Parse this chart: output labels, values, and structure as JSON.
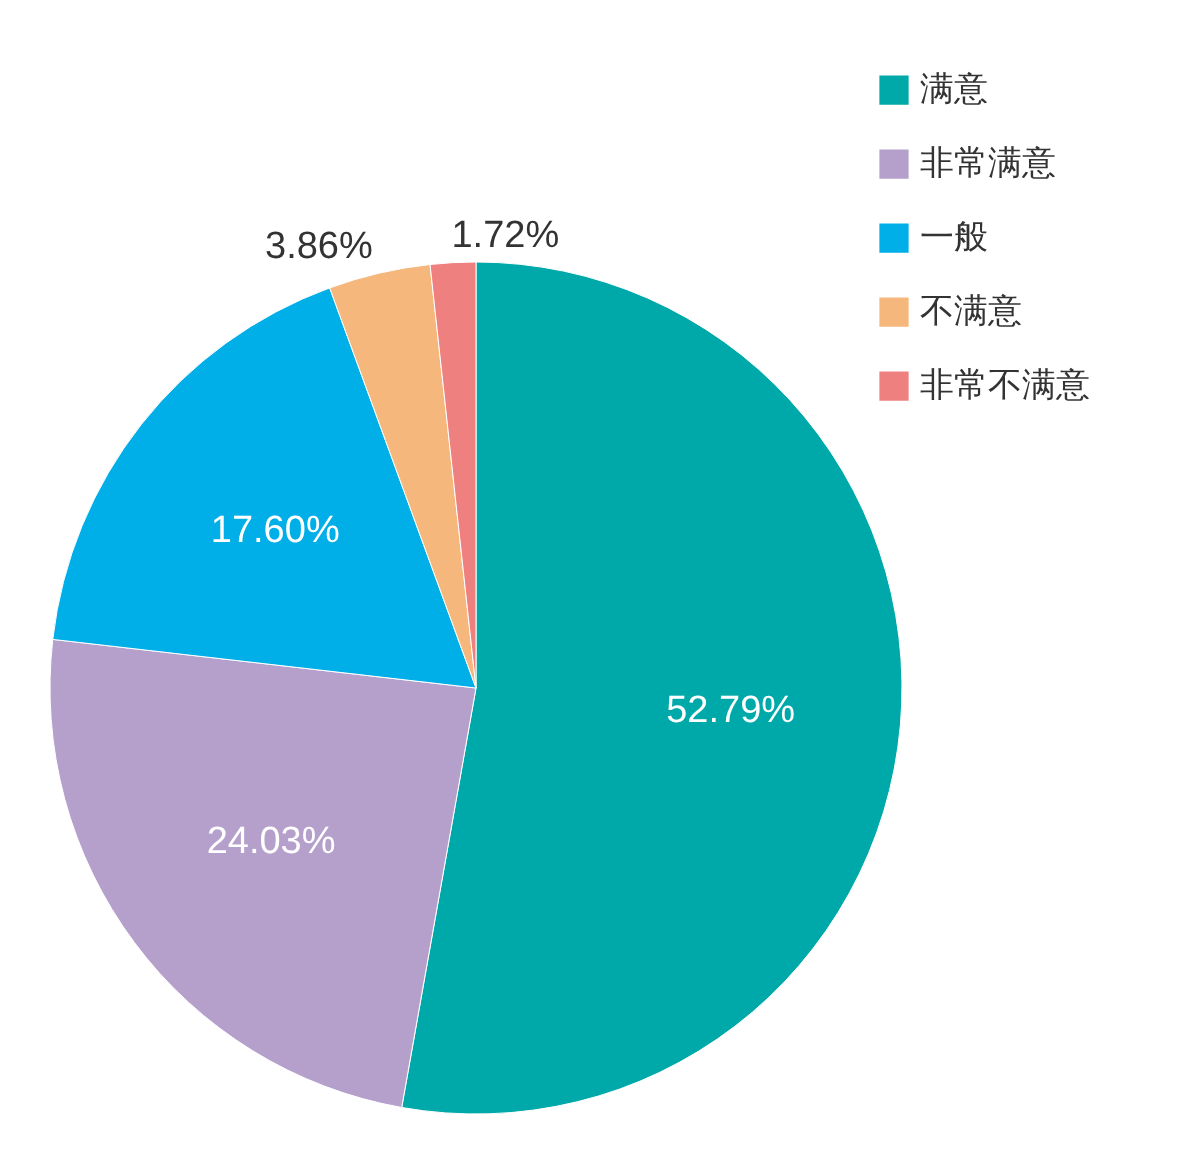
{
  "chart_data": {
    "type": "pie",
    "categories": [
      "满意",
      "非常满意",
      "一般",
      "不满意",
      "非常不满意"
    ],
    "values": [
      52.79,
      24.03,
      17.6,
      3.86,
      1.72
    ],
    "colors": [
      "#00a9a9",
      "#b5a0cc",
      "#00aee8",
      "#f5b77c",
      "#ef8080"
    ],
    "value_labels": [
      "52.79%",
      "24.03%",
      "17.60%",
      "3.86%",
      "1.72%"
    ],
    "legend": "top right"
  }
}
